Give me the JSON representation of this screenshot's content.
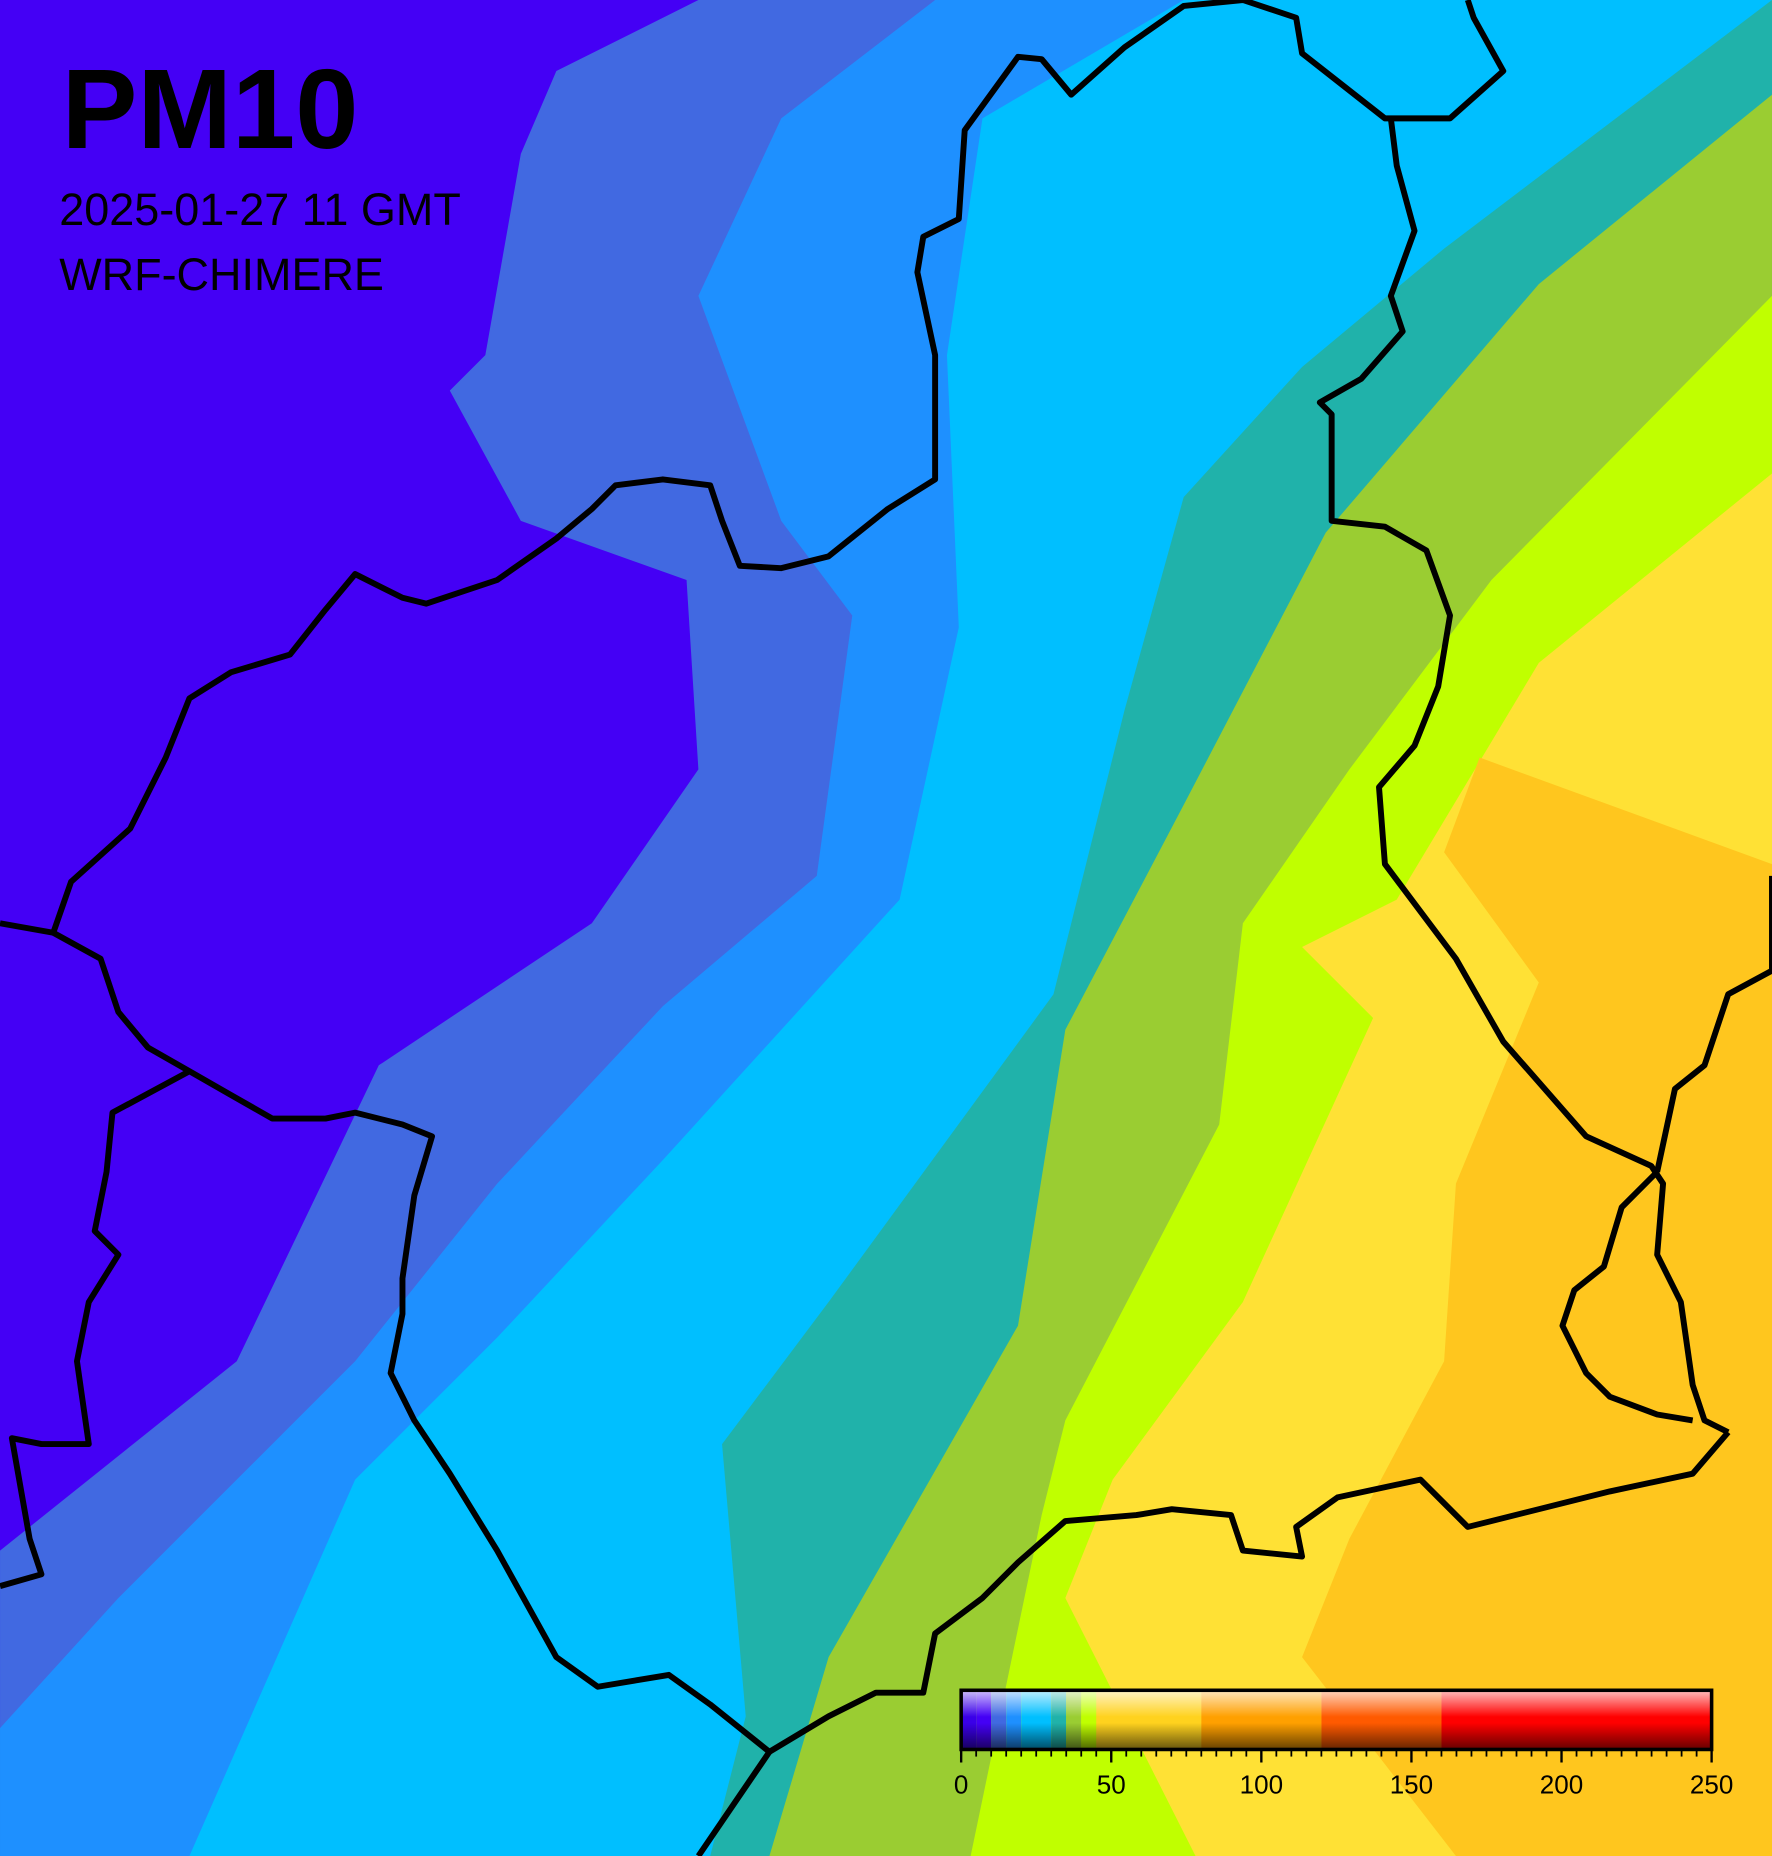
{
  "title": "PM10",
  "date": "2025-01-27 11 GMT",
  "model": "WRF-CHIMERE",
  "colorbar": {
    "range": [
      0,
      250
    ],
    "ticks": [
      0,
      50,
      100,
      150,
      200,
      250
    ],
    "minor_tick_step": 5,
    "bands": [
      {
        "from": 0,
        "to": 5,
        "color": "#3a00e8"
      },
      {
        "from": 5,
        "to": 10,
        "color": "#4400f5"
      },
      {
        "from": 10,
        "to": 15,
        "color": "#4169e1"
      },
      {
        "from": 15,
        "to": 20,
        "color": "#1e90ff"
      },
      {
        "from": 20,
        "to": 30,
        "color": "#00bfff"
      },
      {
        "from": 30,
        "to": 35,
        "color": "#20b2aa"
      },
      {
        "from": 35,
        "to": 40,
        "color": "#9acd32"
      },
      {
        "from": 40,
        "to": 45,
        "color": "#c0ff00"
      },
      {
        "from": 45,
        "to": 80,
        "color": "#ffd21e"
      },
      {
        "from": 80,
        "to": 120,
        "color": "#ffa000"
      },
      {
        "from": 120,
        "to": 160,
        "color": "#ff5a00"
      },
      {
        "from": 160,
        "to": 250,
        "color": "#ff0000"
      }
    ]
  }
}
